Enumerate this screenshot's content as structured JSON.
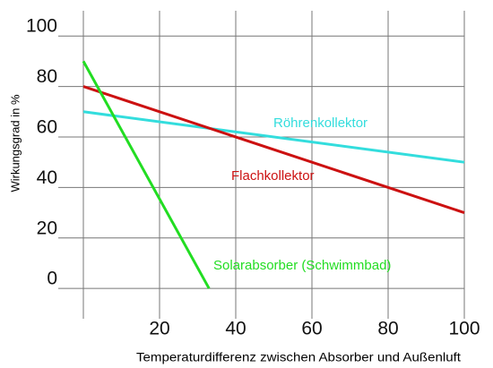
{
  "chart_data": {
    "type": "line",
    "x_label": "Temperaturdifferenz zwischen Absorber und Außenluft",
    "y_label": "Wirkungsgrad in %",
    "xlim": [
      0,
      100
    ],
    "xticks": [
      20,
      40,
      60,
      80,
      100
    ],
    "ylim": [
      -12,
      110
    ],
    "yticks": [
      0,
      20,
      40,
      60,
      80,
      100
    ],
    "grid": true,
    "series": [
      {
        "name": "Röhrenkollektor",
        "color": "#33dddd",
        "x": [
          0,
          100
        ],
        "values": [
          70,
          50
        ]
      },
      {
        "name": "Flachkollektor",
        "color": "#cc1111",
        "x": [
          0,
          100
        ],
        "values": [
          80,
          30
        ]
      },
      {
        "name": "Solarabsorber (Schwimmbad)",
        "color": "#22dd22",
        "x": [
          0,
          33
        ],
        "values": [
          90,
          0
        ]
      }
    ]
  }
}
